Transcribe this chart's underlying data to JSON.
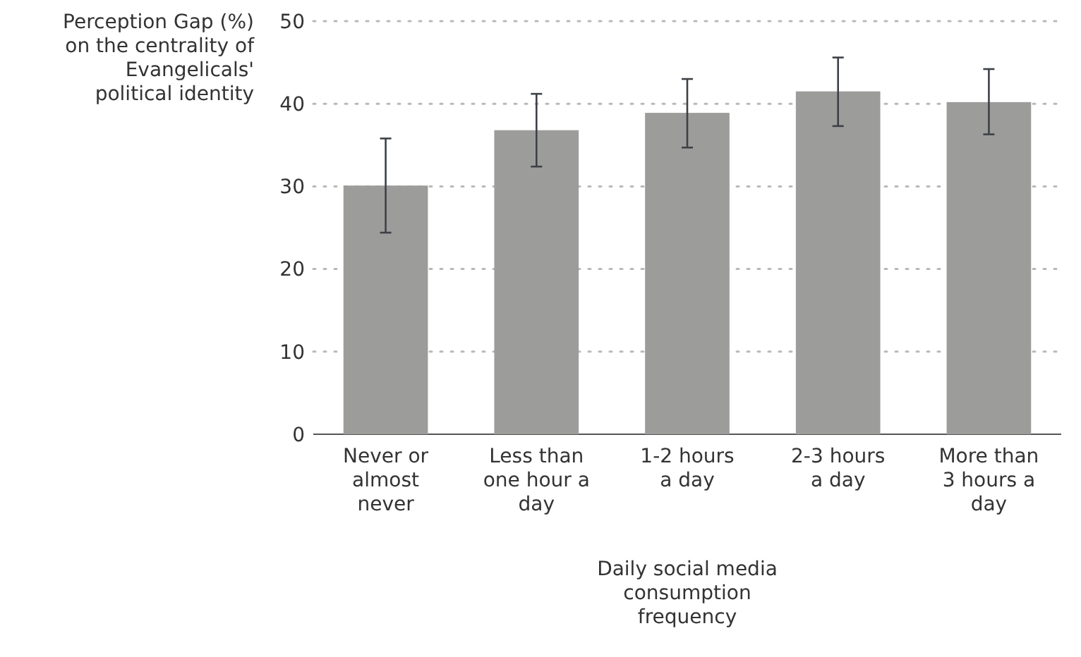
{
  "chart_data": {
    "type": "bar",
    "ylabel": "Perception Gap (%) on the centrality of Evangelicals' political identity",
    "xlabel": "Daily social media consumption frequency",
    "categories": [
      "Never or almost never",
      "Less than one hour a day",
      "1-2 hours a day",
      "2-3 hours a day",
      "More than 3 hours a day"
    ],
    "values": [
      30.1,
      36.8,
      38.9,
      41.5,
      40.2
    ],
    "errors": [
      [
        24.4,
        35.8
      ],
      [
        32.4,
        41.2
      ],
      [
        34.7,
        43.0
      ],
      [
        37.3,
        45.6
      ],
      [
        36.3,
        44.2
      ]
    ],
    "color": "#9c9c9b",
    "ylim": [
      0,
      50
    ],
    "yticks": [
      0,
      10,
      20,
      30,
      40,
      50
    ],
    "grid": "y"
  }
}
